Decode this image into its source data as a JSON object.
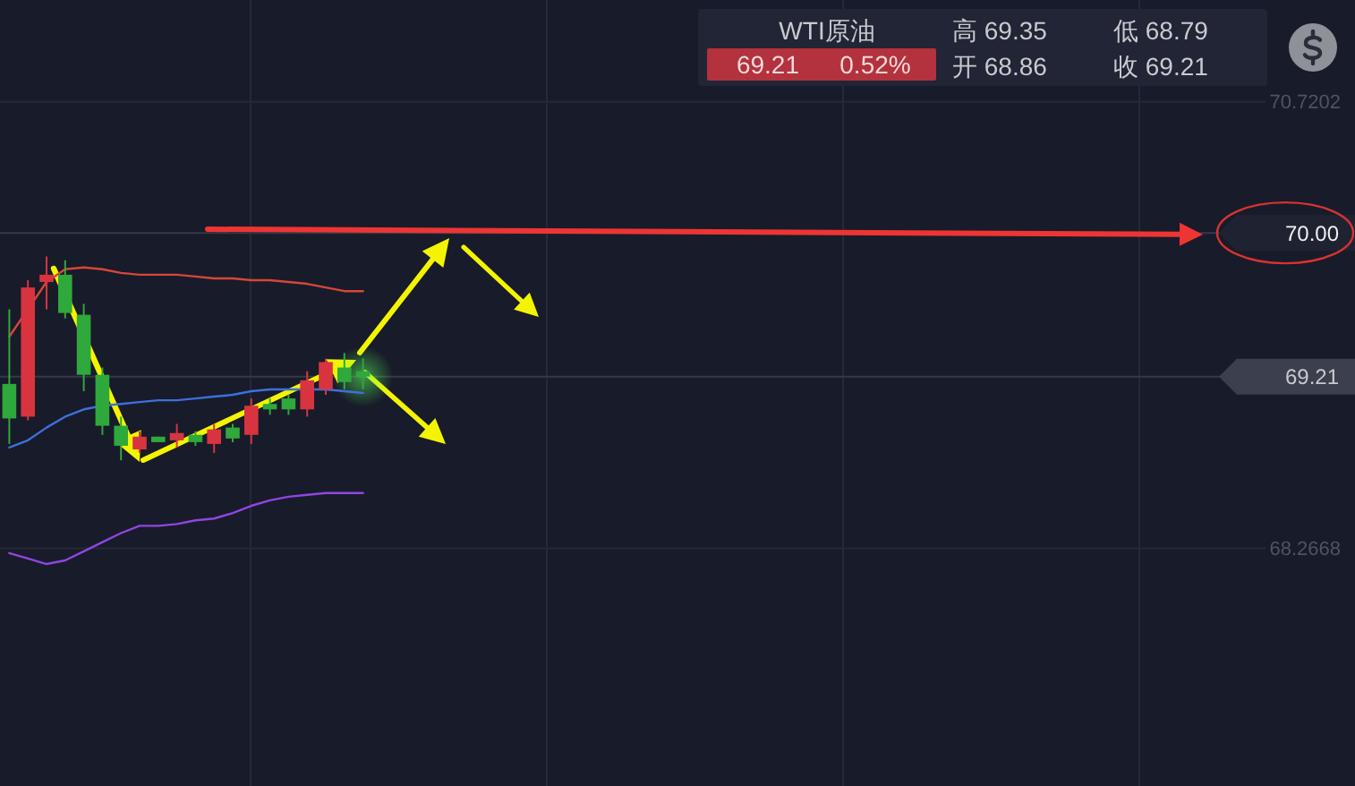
{
  "chart_data": {
    "type": "candlestick",
    "title": "WTI原油",
    "categories": [
      null,
      null,
      null,
      null,
      null,
      null,
      null,
      null,
      null,
      null,
      null,
      null,
      null,
      null,
      null,
      null,
      null,
      null,
      null,
      null,
      null,
      null,
      null,
      null,
      null,
      null,
      null,
      null,
      null,
      null,
      null,
      null,
      null,
      null,
      null,
      null,
      null,
      null,
      null,
      null,
      null,
      null,
      null,
      null,
      null,
      null,
      null,
      null,
      null,
      null,
      null,
      null,
      null,
      null,
      null,
      null,
      null,
      null,
      null,
      null,
      null,
      null,
      null,
      null,
      null,
      null,
      null,
      null
    ],
    "ohlc": [
      [
        69.17,
        69.58,
        68.84,
        68.98
      ],
      [
        68.99,
        69.74,
        68.97,
        69.7
      ],
      [
        69.73,
        69.87,
        69.58,
        69.77
      ],
      [
        69.77,
        69.85,
        69.53,
        69.56
      ],
      [
        69.55,
        69.61,
        69.13,
        69.22
      ],
      [
        69.22,
        69.26,
        68.89,
        68.94
      ],
      [
        68.94,
        68.99,
        68.75,
        68.83
      ],
      [
        68.81,
        68.91,
        68.79,
        68.88
      ],
      [
        68.88,
        68.88,
        68.85,
        68.85
      ],
      [
        68.86,
        68.95,
        68.82,
        68.9
      ],
      [
        68.89,
        68.91,
        68.83,
        68.85
      ],
      [
        68.84,
        68.95,
        68.79,
        68.92
      ],
      [
        68.93,
        68.95,
        68.85,
        68.87
      ],
      [
        68.89,
        69.09,
        68.84,
        69.05
      ],
      [
        69.06,
        69.09,
        69.0,
        69.03
      ],
      [
        69.09,
        69.11,
        69.0,
        69.03
      ],
      [
        69.03,
        69.24,
        68.99,
        69.19
      ],
      [
        69.14,
        69.31,
        69.11,
        69.29
      ],
      [
        69.26,
        69.34,
        69.14,
        69.18
      ],
      [
        69.24,
        69.31,
        69.14,
        69.21
      ],
      null,
      null,
      null,
      null,
      null,
      null,
      null,
      null,
      null,
      null,
      null,
      null,
      null,
      null,
      null,
      null,
      null,
      null,
      null,
      null,
      null,
      null,
      null,
      null,
      null,
      null,
      null,
      null,
      null,
      null,
      null,
      null,
      null,
      null,
      null,
      null,
      null,
      null,
      null,
      null,
      null,
      null,
      null,
      null,
      null,
      null,
      null,
      null
    ],
    "colors": [
      "#2fa83c",
      "#d8343f",
      "#d8343f",
      "#2fa83c",
      "#2fa83c",
      "#2fa83c",
      "#2fa83c",
      "#d8343f",
      "#2fa83c",
      "#d8343f",
      "#2fa83c",
      "#d8343f",
      "#2fa83c",
      "#d8343f",
      "#2fa83c",
      "#2fa83c",
      "#d8343f",
      "#d8343f",
      "#2fa83c",
      "#2fa83c",
      null,
      null,
      null,
      null,
      null,
      null,
      null,
      null,
      null,
      null,
      null,
      null,
      null,
      null,
      null,
      null,
      null,
      null,
      null,
      null,
      null,
      null,
      null,
      null,
      null,
      null,
      null,
      null,
      null,
      null,
      null,
      null,
      null,
      null,
      null,
      null,
      null,
      null,
      null,
      null,
      null,
      null,
      null,
      null,
      null,
      null,
      null,
      null
    ],
    "series": [
      {
        "type": "line",
        "color": "#d6463a",
        "values": [
          69.43,
          69.58,
          69.73,
          69.8,
          69.81,
          69.8,
          69.78,
          69.77,
          69.77,
          69.77,
          69.76,
          69.75,
          69.75,
          69.74,
          69.74,
          69.73,
          69.72,
          69.7,
          69.68,
          69.68,
          null,
          null,
          null,
          null,
          null,
          null,
          null,
          null,
          null,
          null,
          null,
          null,
          null,
          null,
          null,
          null,
          null,
          null,
          null,
          null,
          null,
          null,
          null,
          null,
          null,
          null,
          null,
          null,
          null,
          null,
          null,
          null,
          null,
          null,
          null,
          null,
          null,
          null,
          null,
          null,
          null,
          null,
          null,
          null,
          null,
          null,
          null,
          null
        ]
      },
      {
        "type": "line",
        "color": "#3c70dc",
        "values": [
          68.82,
          68.86,
          68.93,
          68.99,
          69.03,
          69.05,
          69.06,
          69.07,
          69.08,
          69.08,
          69.09,
          69.1,
          69.11,
          69.13,
          69.14,
          69.14,
          69.14,
          69.14,
          69.13,
          69.12,
          null,
          null,
          null,
          null,
          null,
          null,
          null,
          null,
          null,
          null,
          null,
          null,
          null,
          null,
          null,
          null,
          null,
          null,
          null,
          null,
          null,
          null,
          null,
          null,
          null,
          null,
          null,
          null,
          null,
          null,
          null,
          null,
          null,
          null,
          null,
          null,
          null,
          null,
          null,
          null,
          null,
          null,
          null,
          null,
          null,
          null,
          null,
          null
        ]
      },
      {
        "type": "line",
        "color": "#8f46e2",
        "values": [
          68.24,
          68.21,
          68.18,
          68.2,
          68.25,
          68.3,
          68.35,
          68.39,
          68.39,
          68.4,
          68.42,
          68.43,
          68.46,
          68.5,
          68.53,
          68.55,
          68.56,
          68.57,
          68.57,
          68.57,
          null,
          null,
          null,
          null,
          null,
          null,
          null,
          null,
          null,
          null,
          null,
          null,
          null,
          null,
          null,
          null,
          null,
          null,
          null,
          null,
          null,
          null,
          null,
          null,
          null,
          null,
          null,
          null,
          null,
          null,
          null,
          null,
          null,
          null,
          null,
          null,
          null,
          null,
          null,
          null,
          null,
          null,
          null,
          null,
          null,
          null,
          null,
          null
        ]
      }
    ],
    "ylim": [
      66.96,
      71.28
    ],
    "yticks": [
      70.7202,
      68.2668
    ],
    "grid": true,
    "tick_labels": "y",
    "ref_lines": [
      {
        "axis": "y",
        "value": 70,
        "label": "70.00"
      },
      {
        "axis": "y",
        "value": 69.21,
        "label": "69.21"
      }
    ],
    "annotations": [
      "高 69.35",
      "低 68.79",
      "69.21",
      "0.52%",
      "开 68.86",
      "收 69.21"
    ]
  }
}
